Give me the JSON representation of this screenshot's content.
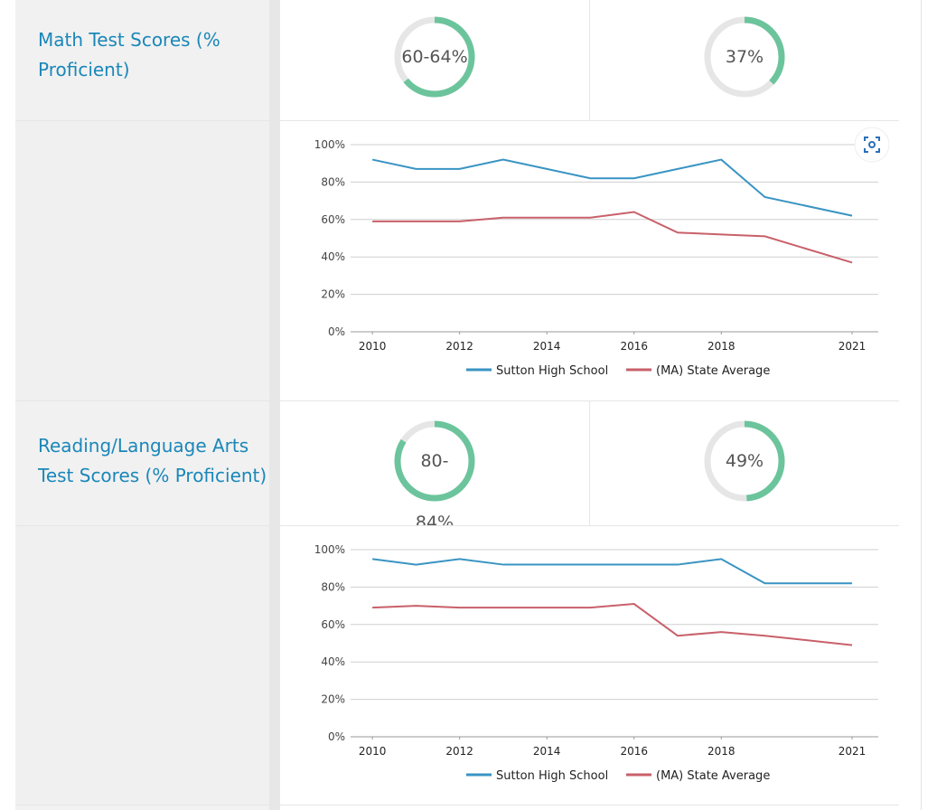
{
  "sections": [
    {
      "title": "Math Test Scores (% Proficient)",
      "gauges": [
        {
          "label": "60-64%",
          "range": [
            60,
            64
          ]
        },
        {
          "label": "37%",
          "value": 37
        }
      ]
    },
    {
      "title": "Reading/Language Arts Test Scores (% Proficient)",
      "gauges": [
        {
          "label": "80-84%",
          "range": [
            80,
            84
          ]
        },
        {
          "label": "49%",
          "value": 49
        }
      ]
    }
  ],
  "chart_data": [
    {
      "type": "line",
      "legend": "bottom",
      "grid": true,
      "x": [
        2010,
        2011,
        2012,
        2013,
        2014,
        2015,
        2016,
        2017,
        2018,
        2019,
        2021
      ],
      "xlim": [
        2009.5,
        2021.6
      ],
      "xticks": [
        2010,
        2012,
        2014,
        2016,
        2018,
        2021
      ],
      "ylim": [
        0,
        100
      ],
      "yticks": [
        {
          "value": 0,
          "label": "0%"
        },
        {
          "value": 20,
          "label": "20%"
        },
        {
          "value": 40,
          "label": "40%"
        },
        {
          "value": 60,
          "label": "60%"
        },
        {
          "value": 80,
          "label": "80%"
        },
        {
          "value": 100,
          "label": "100%"
        }
      ],
      "series": [
        {
          "name": "Sutton High School",
          "color": "#3994c3",
          "values": [
            92,
            87,
            87,
            92,
            87,
            82,
            82,
            87,
            92,
            72,
            62
          ]
        },
        {
          "name": "(MA) State Average",
          "color": "#c9606a",
          "values": [
            59,
            59,
            59,
            61,
            61,
            61,
            64,
            53,
            52,
            51,
            37
          ]
        }
      ]
    },
    {
      "type": "line",
      "legend": "bottom",
      "grid": true,
      "x": [
        2010,
        2011,
        2012,
        2013,
        2014,
        2015,
        2016,
        2017,
        2018,
        2019,
        2021
      ],
      "xlim": [
        2009.5,
        2021.6
      ],
      "xticks": [
        2010,
        2012,
        2014,
        2016,
        2018,
        2021
      ],
      "ylim": [
        0,
        100
      ],
      "yticks": [
        {
          "value": 0,
          "label": "0%"
        },
        {
          "value": 20,
          "label": "20%"
        },
        {
          "value": 40,
          "label": "40%"
        },
        {
          "value": 60,
          "label": "60%"
        },
        {
          "value": 80,
          "label": "80%"
        },
        {
          "value": 100,
          "label": "100%"
        }
      ],
      "series": [
        {
          "name": "Sutton High School",
          "color": "#3994c3",
          "values": [
            95,
            92,
            95,
            92,
            92,
            92,
            92,
            92,
            95,
            82,
            82
          ]
        },
        {
          "name": "(MA) State Average",
          "color": "#c9606a",
          "values": [
            69,
            70,
            69,
            69,
            69,
            69,
            71,
            54,
            56,
            54,
            49
          ]
        }
      ]
    }
  ]
}
